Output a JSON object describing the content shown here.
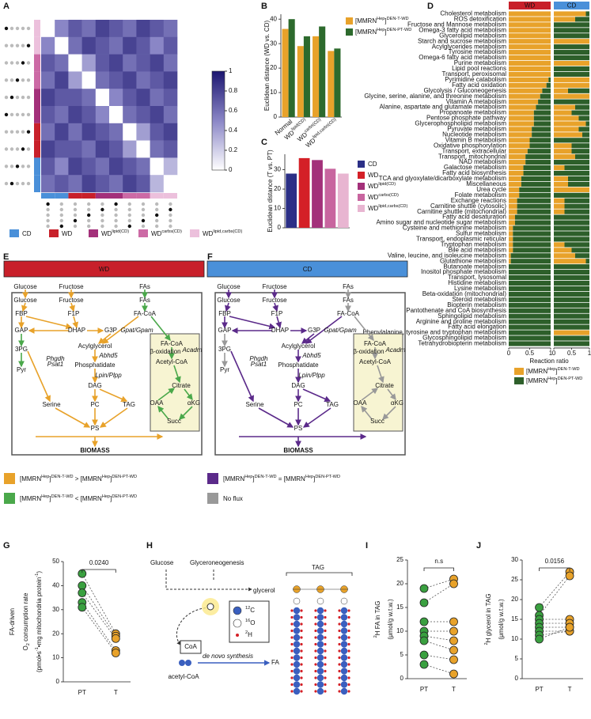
{
  "panels": [
    "A",
    "B",
    "C",
    "D",
    "E",
    "F",
    "G",
    "H",
    "I",
    "J"
  ],
  "A": {
    "colorscale": [
      "#ffffff",
      "#8a86c6",
      "#1c1670"
    ],
    "clim": [
      0,
      1
    ],
    "cticks": [
      0,
      0.2,
      0.4,
      0.6,
      0.8,
      1
    ],
    "groups": [
      {
        "label": "CD",
        "color": "#4a90d9"
      },
      {
        "label": "WD",
        "color": "#c8202a"
      },
      {
        "label": [
          {
            "text": "WD"
          },
          {
            "text": "lipid(CD)",
            "sup": true
          }
        ],
        "color": "#a3307a"
      },
      {
        "label": [
          {
            "text": "WD"
          },
          {
            "text": "carbs(CD)",
            "sup": true
          }
        ],
        "color": "#cc6aa5"
      },
      {
        "label": [
          {
            "text": "WD"
          },
          {
            "text": "lipid,carbs(CD)",
            "sup": true
          }
        ],
        "color": "#ecc0dc"
      }
    ],
    "row_groups": [
      4,
      4,
      3,
      3,
      2,
      2,
      1,
      1,
      0,
      0
    ],
    "matrix": [
      [
        0,
        0.5,
        0.7,
        0.6,
        0.8,
        0.7,
        0.6,
        0.8,
        0.7,
        0.6
      ],
      [
        0.5,
        0,
        0.6,
        0.8,
        0.7,
        0.6,
        0.8,
        0.7,
        0.5,
        0.7
      ],
      [
        0.7,
        0.6,
        0,
        0.4,
        0.7,
        0.8,
        0.6,
        0.7,
        0.8,
        0.6
      ],
      [
        0.6,
        0.8,
        0.4,
        0,
        0.6,
        0.7,
        0.8,
        0.6,
        0.7,
        0.8
      ],
      [
        0.8,
        0.7,
        0.7,
        0.6,
        0,
        0.5,
        0.7,
        0.8,
        0.6,
        0.7
      ],
      [
        0.7,
        0.6,
        0.8,
        0.7,
        0.5,
        0,
        0.6,
        0.7,
        0.8,
        0.6
      ],
      [
        0.6,
        0.8,
        0.6,
        0.8,
        0.7,
        0.6,
        0,
        0.4,
        0.7,
        0.8
      ],
      [
        0.8,
        0.7,
        0.7,
        0.6,
        0.8,
        0.7,
        0.4,
        0,
        0.6,
        0.7
      ],
      [
        0.7,
        0.5,
        0.8,
        0.7,
        0.6,
        0.8,
        0.7,
        0.6,
        0,
        0.3
      ],
      [
        0.6,
        0.7,
        0.6,
        0.8,
        0.7,
        0.6,
        0.8,
        0.7,
        0.3,
        0
      ]
    ]
  },
  "B": {
    "ylabel": "Euclidean distance (WD vs. CD)",
    "categories": [
      "Normal",
      [
        {
          "text": "WD"
        },
        {
          "text": "lipid(CD)",
          "sup": true
        }
      ],
      [
        {
          "text": "WD"
        },
        {
          "text": "carbs(CD)",
          "sup": true
        }
      ],
      [
        {
          "text": "WD"
        },
        {
          "text": "lipid,carbs(CD)",
          "sup": true
        }
      ]
    ],
    "series": [
      {
        "name": [
          {
            "text": "[MMRN"
          },
          {
            "text": "Hep",
            "sup": true
          },
          {
            "text": "]"
          },
          {
            "text": "DEN-T-WD",
            "sup": true
          }
        ],
        "color": "#e8a22a",
        "values": [
          36,
          29,
          33,
          27
        ]
      },
      {
        "name": [
          {
            "text": "[MMRN"
          },
          {
            "text": "Hep",
            "sup": true
          },
          {
            "text": "]"
          },
          {
            "text": "DEN-PT-WD",
            "sup": true
          }
        ],
        "color": "#2d6a2d",
        "values": [
          40,
          33,
          37,
          28
        ]
      }
    ],
    "ylim": [
      0,
      42
    ],
    "yticks": [
      0,
      10,
      20,
      30,
      40
    ]
  },
  "C": {
    "ylabel": "Euclidean distance (T vs. PT)",
    "categories": [
      "CD",
      "WD",
      [
        {
          "text": "WD"
        },
        {
          "text": "lipid(CD)",
          "sup": true
        }
      ],
      [
        {
          "text": "WD"
        },
        {
          "text": "carbs(CD)",
          "sup": true
        }
      ],
      [
        {
          "text": "WD"
        },
        {
          "text": "lipid,carbs(CD)",
          "sup": true
        }
      ]
    ],
    "colors": [
      "#2b2f86",
      "#d42027",
      "#a3307a",
      "#c8659f",
      "#e8b5d1"
    ],
    "values": [
      28,
      36,
      35,
      30.5,
      28
    ],
    "ylim": [
      0,
      38
    ],
    "yticks": [
      0,
      10,
      20,
      30
    ]
  },
  "D": {
    "columns": [
      {
        "name": "WD",
        "color": "#c8202a"
      },
      {
        "name": "CD",
        "color": "#4a90d9"
      }
    ],
    "xlabel": "Reaction ratio",
    "xticks": [
      0,
      0.5,
      1
    ],
    "colors": [
      "#e8a22a",
      "#2d5f2a"
    ],
    "legend": [
      [
        {
          "text": "[MMRN"
        },
        {
          "text": "Hep",
          "sup": true
        },
        {
          "text": "]"
        },
        {
          "text": "DEN-T-WD",
          "sup": true
        }
      ],
      [
        {
          "text": "[MMRN"
        },
        {
          "text": "Hep",
          "sup": true
        },
        {
          "text": "]"
        },
        {
          "text": "DEN-PT-WD",
          "sup": true
        }
      ]
    ],
    "rows": [
      {
        "name": "Cholesterol metabolism",
        "wd": 1,
        "cd": 0.9
      },
      {
        "name": "ROS detoxification",
        "wd": 1,
        "cd": 0.6
      },
      {
        "name": "Fructose and Mannose metabolism",
        "wd": 1,
        "cd": 0
      },
      {
        "name": "Omega-3 fatty acid metabolism",
        "wd": 1,
        "cd": 0
      },
      {
        "name": "Glycerolipid metabolism",
        "wd": 1,
        "cd": 0
      },
      {
        "name": "Starch and sucrose metabolism",
        "wd": 1,
        "cd": 1
      },
      {
        "name": "Acylglycerides metabolism",
        "wd": 1,
        "cd": 0
      },
      {
        "name": "Tyrosine metabolism",
        "wd": 1,
        "cd": 0
      },
      {
        "name": "Omega-6 fatty acid metabolism",
        "wd": 1,
        "cd": 0
      },
      {
        "name": "Purine metabolism",
        "wd": 1,
        "cd": 1
      },
      {
        "name": "Lipid pool reactions",
        "wd": 1,
        "cd": 0
      },
      {
        "name": "Transport, peroxisomal",
        "wd": 1,
        "cd": 0
      },
      {
        "name": "Pyrimidine catabolism",
        "wd": 0.95,
        "cd": 1
      },
      {
        "name": "Fatty acid oxidation",
        "wd": 0.9,
        "cd": 1
      },
      {
        "name": "Glycolysis / Gluconeogenesis",
        "wd": 0.8,
        "cd": 0.4
      },
      {
        "name": "Glycine, serine, alanine, and threonine metabolism",
        "wd": 0.75,
        "cd": 1
      },
      {
        "name": "Vitamin A metabolism",
        "wd": 0.7,
        "cd": 0
      },
      {
        "name": "Alanine, aspartate and glutamate metabolism",
        "wd": 0.65,
        "cd": 0.6
      },
      {
        "name": "Propanoate metabolism",
        "wd": 0.6,
        "cd": 0.5
      },
      {
        "name": "Pentose phosphate pathway",
        "wd": 0.6,
        "cd": 0.7
      },
      {
        "name": "Glycerophospholipid metabolism",
        "wd": 0.6,
        "cd": 0.9
      },
      {
        "name": "Pyruvate metabolism",
        "wd": 0.55,
        "cd": 0.7
      },
      {
        "name": "Nucleotide metabolism",
        "wd": 0.55,
        "cd": 0.8
      },
      {
        "name": "Vitamin B metabolism",
        "wd": 0.5,
        "cd": 0
      },
      {
        "name": "Oxidative phosphorylation",
        "wd": 0.5,
        "cd": 0.5
      },
      {
        "name": "Transport, extracellular",
        "wd": 0.45,
        "cd": 0.5
      },
      {
        "name": "Transport, mitochondrial",
        "wd": 0.4,
        "cd": 0.6
      },
      {
        "name": "NAD metabolism",
        "wd": 0.4,
        "cd": 0
      },
      {
        "name": "Galactose metabolism",
        "wd": 0.35,
        "cd": 0.3
      },
      {
        "name": "Fatty acid biosynthesis",
        "wd": 0.35,
        "cd": 0
      },
      {
        "name": "TCA and glyoxylate/dicarboxylate metabolism",
        "wd": 0.3,
        "cd": 0.4
      },
      {
        "name": "Miscellaneous",
        "wd": 0.3,
        "cd": 0.4
      },
      {
        "name": "Urea cycle",
        "wd": 0.25,
        "cd": 1
      },
      {
        "name": "Folate metabolism",
        "wd": 0.25,
        "cd": 0
      },
      {
        "name": "Exchange reactions",
        "wd": 0.2,
        "cd": 0.3
      },
      {
        "name": "Carnitine shuttle (cytosolic)",
        "wd": 0.2,
        "cd": 0.3
      },
      {
        "name": "Carnitine shuttle (mitochondrial)",
        "wd": 0.2,
        "cd": 0.3
      },
      {
        "name": "Fatty acid desaturation",
        "wd": 0.15,
        "cd": 0
      },
      {
        "name": "Amino sugar and nucleotide sugar metabolism",
        "wd": 0.15,
        "cd": 0
      },
      {
        "name": "Cysteine and methionine metabolism",
        "wd": 0.1,
        "cd": 0
      },
      {
        "name": "Sulfur metabolism",
        "wd": 0.1,
        "cd": 0
      },
      {
        "name": "Transport, endoplasmic reticular",
        "wd": 0.1,
        "cd": 0
      },
      {
        "name": "Tryptophan metabolism",
        "wd": 0.1,
        "cd": 0.3
      },
      {
        "name": "Bile acid metabolism",
        "wd": 0.1,
        "cd": 0.5
      },
      {
        "name": "Valine, leucine, and isoleucine metabolism",
        "wd": 0.05,
        "cd": 0.6
      },
      {
        "name": "Glutathione metabolism",
        "wd": 0.05,
        "cd": 0.9
      },
      {
        "name": "Butanoate metabolism",
        "wd": 0,
        "cd": 0
      },
      {
        "name": "Inositol phosphate metabolism",
        "wd": 0,
        "cd": 0
      },
      {
        "name": "Transport, lysosomal",
        "wd": 0,
        "cd": 0
      },
      {
        "name": "Histidine metabolism",
        "wd": 0,
        "cd": 0
      },
      {
        "name": "Lysine metabolism",
        "wd": 0,
        "cd": 0
      },
      {
        "name": "Beta-oxidation (mitochondrial)",
        "wd": 0,
        "cd": 0
      },
      {
        "name": "Steroid metabolism",
        "wd": 0,
        "cd": 0
      },
      {
        "name": "Biopterin metabolism",
        "wd": 0,
        "cd": 0
      },
      {
        "name": "Pantothenate and CoA biosynthesis",
        "wd": 0,
        "cd": 0
      },
      {
        "name": "Sphingolipid metabolism",
        "wd": 0,
        "cd": 0
      },
      {
        "name": "Arginine and proline metabolism",
        "wd": 0,
        "cd": 0
      },
      {
        "name": "Fatty acid elongation",
        "wd": 0,
        "cd": 0
      },
      {
        "name": "Phenylalanine, tyrosine and tryptophan metabolism",
        "wd": 0,
        "cd": 1
      },
      {
        "name": "Glycosphingolipid metabolism",
        "wd": 0,
        "cd": 0
      },
      {
        "name": "Tetrahydrobiopterin metabolism",
        "wd": 0,
        "cd": 0
      }
    ]
  },
  "E": {
    "title": "WD",
    "title_color": "#c8202a",
    "edge_colors": [
      "#e8a22a",
      "#4aa84a"
    ],
    "nodes": [
      "Glucose",
      "Fructose",
      "FAs",
      "Glucose",
      "Fructose",
      "FAs",
      "FBP",
      "F1P",
      "FA-CoA",
      "GAP",
      "DHAP",
      "G3P",
      "Gpat/Gpam",
      "3PG",
      "Acylglycerol",
      "Pyr",
      "Phgdh",
      "Psat1",
      "Abhd5",
      "Phosphatidate",
      "Lpin/Plpp",
      "DAG",
      "Serine",
      "PC",
      "TAG",
      "PS",
      "BIOMASS",
      "FA-CoA",
      "β-oxidation",
      "Acadm",
      "Acetyl-CoA",
      "Citrate",
      "OAA",
      "αKG",
      "Succ"
    ],
    "legend": [
      {
        "color": "#e8a22a",
        "label": [
          {
            "text": "[MMRN"
          },
          {
            "text": "Hep",
            "sup": true
          },
          {
            "text": "]"
          },
          {
            "text": "DEN-T-WD",
            "sup": true
          },
          {
            "text": " > [MMRN"
          },
          {
            "text": "Hep",
            "sup": true
          },
          {
            "text": "]"
          },
          {
            "text": "DEN-PT-WD",
            "sup": true
          }
        ]
      },
      {
        "color": "#4aa84a",
        "label": [
          {
            "text": "[MMRN"
          },
          {
            "text": "Hep",
            "sup": true
          },
          {
            "text": "]"
          },
          {
            "text": "DEN-T-WD",
            "sup": true
          },
          {
            "text": " < [MMRN"
          },
          {
            "text": "Hep",
            "sup": true
          },
          {
            "text": "]"
          },
          {
            "text": "DEN-PT-WD",
            "sup": true
          }
        ]
      }
    ]
  },
  "F": {
    "title": "CD",
    "title_color": "#4a90d9",
    "edge_colors": [
      "#5b2a8a",
      "#999999"
    ],
    "nodes": [
      "Glucose",
      "Fructose",
      "FAs",
      "Glucose",
      "Fructose",
      "FAs",
      "FBP",
      "F1P",
      "FA-CoA",
      "GAP",
      "DHAP",
      "G3P",
      "Gpat/Gpam",
      "3PG",
      "Acylglycerol",
      "Pyr",
      "Phgdh",
      "Psat1",
      "Abhd5",
      "Phosphatidate",
      "Lpin/Plpp",
      "DAG",
      "Serine",
      "PC",
      "TAG",
      "PS",
      "BIOMASS",
      "FA-CoA",
      "β-oxidation",
      "Acadm",
      "Acetyl-CoA",
      "Citrate",
      "OAA",
      "αKG",
      "Succ"
    ],
    "legend": [
      {
        "color": "#5b2a8a",
        "label": [
          {
            "text": "[MMRN"
          },
          {
            "text": "Hep",
            "sup": true
          },
          {
            "text": "]"
          },
          {
            "text": "DEN-T-WD",
            "sup": true
          },
          {
            "text": " = [MMRN"
          },
          {
            "text": "Hep",
            "sup": true
          },
          {
            "text": "]"
          },
          {
            "text": "DEN-PT-WD",
            "sup": true
          }
        ]
      },
      {
        "color": "#999999",
        "label": "No flux"
      }
    ]
  },
  "G": {
    "ylabel": [
      "FA-driven",
      [
        {
          "text": "O"
        },
        {
          "text": "2",
          "sub": true
        },
        {
          "text": " consumption rate"
        }
      ],
      [
        {
          "text": "(pmol•s"
        },
        {
          "text": "-1",
          "sup": true
        },
        {
          "text": "•mg mitochondria protein"
        },
        {
          "text": "-1",
          "sup": true
        },
        {
          "text": ")"
        }
      ]
    ],
    "categories": [
      "PT",
      "T"
    ],
    "colors": [
      "#3aa040",
      "#e8a22a"
    ],
    "PT": [
      45,
      40,
      37,
      33,
      31
    ],
    "T": [
      20,
      19,
      18,
      13,
      12
    ],
    "annotation": "0.0240",
    "ylim": [
      0,
      50
    ],
    "yticks": [
      0,
      10,
      20,
      30,
      40,
      50
    ]
  },
  "H": {
    "glucose": "Glucose",
    "glyceroneogenesis": "Glyceroneogenesis",
    "glycerol": "glycerol",
    "tag": "TAG",
    "coa": "CoA",
    "acetyl": "acetyl-CoA",
    "denovo": "de novo synthesis",
    "fa": "FA",
    "legend": [
      [
        {
          "text": "12",
          "sup": true
        },
        {
          "text": "C"
        }
      ],
      [
        {
          "text": "16",
          "sup": true
        },
        {
          "text": "O"
        }
      ],
      [
        {
          "text": "2",
          "sup": true
        },
        {
          "text": "H"
        }
      ]
    ]
  },
  "I": {
    "ylabel": [
      [
        {
          "text": "2",
          "sup": true
        },
        {
          "text": "H FA  in TAG"
        }
      ],
      "(μmol/g w.t.w.)"
    ],
    "categories": [
      "PT",
      "T"
    ],
    "colors": [
      "#3aa040",
      "#e8a22a"
    ],
    "PT": [
      19,
      16,
      12,
      10,
      9,
      8,
      5,
      3
    ],
    "T": [
      21,
      20,
      12,
      10,
      8,
      6,
      4,
      1
    ],
    "annotation": "n.s",
    "ylim": [
      0,
      25
    ],
    "yticks": [
      0,
      5,
      10,
      15,
      20,
      25
    ]
  },
  "J": {
    "ylabel": [
      [
        {
          "text": "2",
          "sup": true
        },
        {
          "text": "H glycerol in TAG"
        }
      ],
      "(μmol/g w.t.w.)"
    ],
    "categories": [
      "PT",
      "T"
    ],
    "colors": [
      "#3aa040",
      "#e8a22a"
    ],
    "PT": [
      18,
      16,
      15,
      14,
      13,
      12,
      11,
      10
    ],
    "T": [
      27,
      26,
      15,
      14,
      13,
      12,
      12,
      13
    ],
    "annotation": "0.0156",
    "ylim": [
      0,
      30
    ],
    "yticks": [
      0,
      5,
      10,
      15,
      20,
      25,
      30
    ]
  }
}
